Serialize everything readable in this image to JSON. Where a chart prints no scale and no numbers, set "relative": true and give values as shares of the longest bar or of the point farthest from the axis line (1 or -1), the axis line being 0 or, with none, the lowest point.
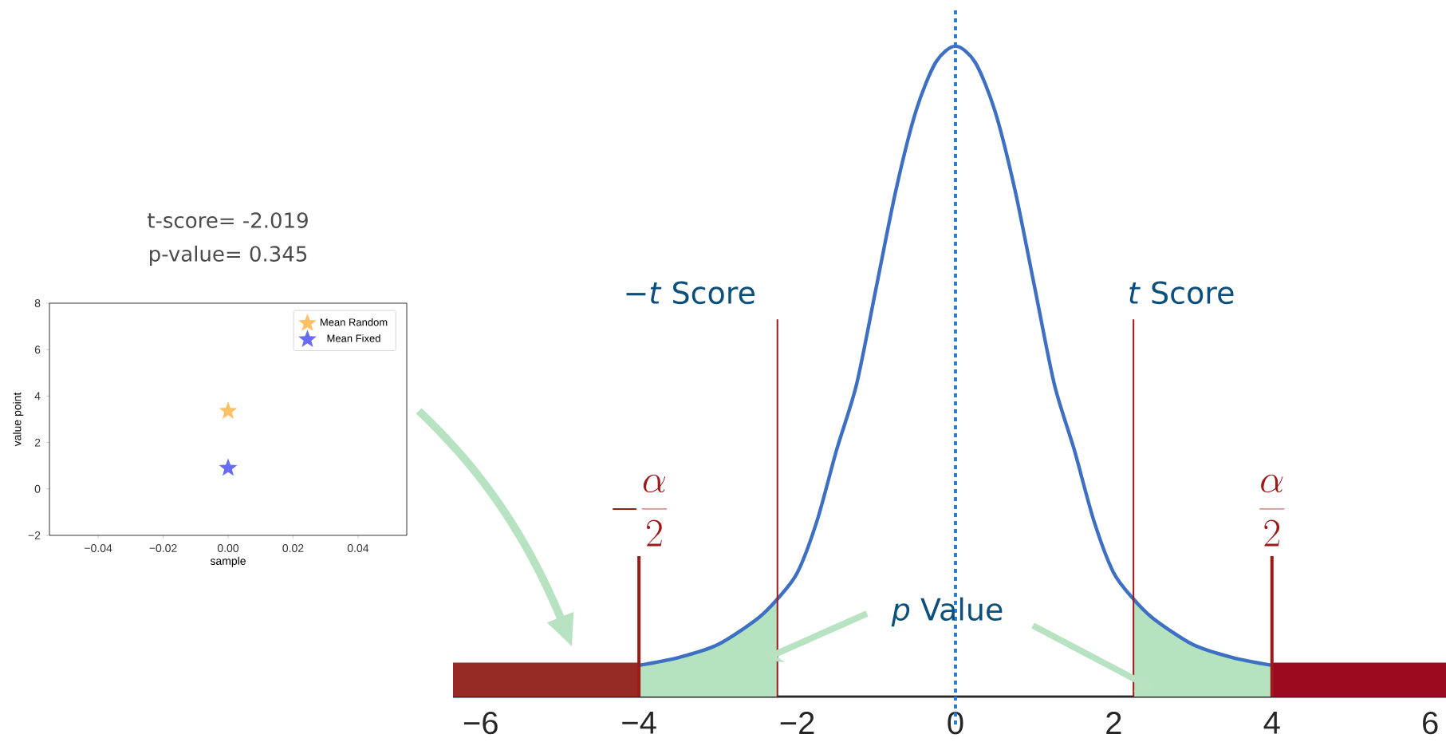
{
  "chart_data": [
    {
      "type": "scatter",
      "title": "t-score= -2.019",
      "subtitle": "p-value= 0.345",
      "xlabel": "sample",
      "ylabel": "value point",
      "x": [
        0
      ],
      "series": [
        {
          "name": "Mean Random",
          "color": "#fdc165",
          "values": [
            3.35
          ]
        },
        {
          "name": "Mean Fixed",
          "color": "#6a6af8",
          "values": [
            0.9
          ]
        }
      ],
      "xlim": [
        -0.055,
        0.055
      ],
      "ylim": [
        -2,
        8
      ],
      "xticks": [
        {
          "value": -0.04,
          "label": "−0.04"
        },
        {
          "value": -0.02,
          "label": "−0.02"
        },
        {
          "value": 0,
          "label": "0.00"
        },
        {
          "value": 0.02,
          "label": "0.02"
        },
        {
          "value": 0.04,
          "label": "0.04"
        }
      ],
      "yticks": [
        {
          "value": -2,
          "label": "−2"
        },
        0,
        2,
        4,
        6,
        8
      ],
      "legend": "top right",
      "marker": "star"
    },
    {
      "type": "line",
      "relative": true,
      "series": [
        {
          "type": "area",
          "color": "#962a25",
          "x": [
            -6.35,
            -4
          ],
          "values": [
            0.052,
            0.052
          ]
        },
        {
          "type": "area",
          "color": "#9b0a1e",
          "x": [
            4,
            6.2
          ],
          "values": [
            0.052,
            0.052
          ]
        },
        {
          "type": "area",
          "color": "#b5e3c0",
          "x": [
            -4,
            -3.5,
            -3,
            -2.5,
            -2.25
          ],
          "values": [
            0.048,
            0.06,
            0.08,
            0.12,
            0.15
          ]
        },
        {
          "type": "area",
          "color": "#b5e3c0",
          "x": [
            2.25,
            2.5,
            3,
            3.5,
            4
          ],
          "values": [
            0.15,
            0.12,
            0.08,
            0.06,
            0.048
          ]
        },
        {
          "color": "#3d6fc2",
          "x": [
            -4,
            -3.5,
            -3,
            -2.5,
            -2.25,
            -2,
            -1.75,
            -1.5,
            -1.25,
            -1,
            -0.75,
            -0.5,
            -0.25,
            0,
            0.25,
            0.5,
            0.75,
            1,
            1.25,
            1.5,
            1.75,
            2,
            2.25,
            2.5,
            3,
            3.5,
            4
          ],
          "values": [
            0.048,
            0.06,
            0.08,
            0.12,
            0.15,
            0.19,
            0.27,
            0.38,
            0.48,
            0.63,
            0.78,
            0.9,
            0.975,
            1,
            0.975,
            0.9,
            0.78,
            0.63,
            0.48,
            0.38,
            0.27,
            0.19,
            0.15,
            0.12,
            0.08,
            0.06,
            0.048
          ]
        }
      ],
      "xlim": [
        -6.35,
        6.2
      ],
      "xticks": [
        {
          "value": -6,
          "label": "−6"
        },
        {
          "value": -4,
          "label": "−4"
        },
        {
          "value": -2,
          "label": "−2"
        },
        0,
        2,
        4,
        6
      ],
      "ref_lines": [
        {
          "axis": "x",
          "value": 0,
          "color": "#2a7ad8",
          "line_style": "dotted"
        },
        {
          "axis": "x",
          "value": -2.25,
          "color": "#a01818"
        },
        {
          "axis": "x",
          "value": 2.25,
          "color": "#a01818"
        },
        {
          "axis": "x",
          "value": -4,
          "label": "-\\frac{\\alpha}{2}",
          "color": "#9b1b1b"
        },
        {
          "axis": "x",
          "value": 4,
          "label": "\\frac{\\alpha}{2}",
          "color": "#9b1b1b"
        }
      ],
      "annotations": [
        {
          "text": "−*t*  Score",
          "x": -2.25,
          "y": 0.58
        },
        {
          "text": "*t*  Score",
          "x": 2.25,
          "y": 0.58
        },
        "*p* Value"
      ]
    }
  ]
}
